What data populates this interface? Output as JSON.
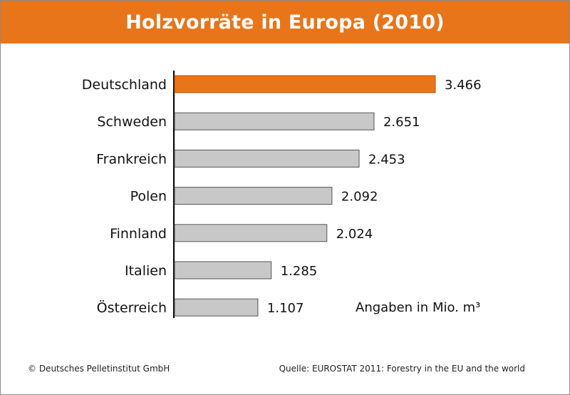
{
  "title": "Holzvorräte in Europa (2010)",
  "chart_data": {
    "type": "bar",
    "orientation": "horizontal",
    "title": "Holzvorräte in Europa (2010)",
    "unit_note": "Angaben in Mio. m³",
    "categories": [
      "Deutschland",
      "Schweden",
      "Frankreich",
      "Polen",
      "Finnland",
      "Italien",
      "Österreich"
    ],
    "values": [
      3466,
      2651,
      2453,
      2092,
      2024,
      1285,
      1107
    ],
    "value_labels": [
      "3.466",
      "2.651",
      "2.453",
      "2.092",
      "2.024",
      "1.285",
      "1.107"
    ],
    "highlight_index": 0,
    "xlim": [
      0,
      3466
    ],
    "grid": false,
    "legend": "none",
    "colors": {
      "highlight": "#e8751a",
      "bar": "#c8c8c8",
      "bar_border": "#555555",
      "axis": "#000000",
      "title_bar": "#e8751a",
      "title_text": "#ffffff"
    }
  },
  "footer": {
    "copyright": "© Deutsches Pelletinstitut GmbH",
    "source": "Quelle: EUROSTAT 2011: Forestry in the EU and the world"
  }
}
